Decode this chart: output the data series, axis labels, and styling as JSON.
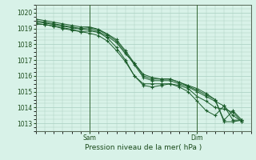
{
  "title": "",
  "xlabel": "Pression niveau de la mer( hPa )",
  "ylabel": "",
  "ylim": [
    1012.5,
    1020.5
  ],
  "xlim": [
    0,
    96
  ],
  "yticks": [
    1013,
    1014,
    1015,
    1016,
    1017,
    1018,
    1019,
    1020
  ],
  "xtick_positions": [
    24,
    72
  ],
  "xtick_labels": [
    "Sam",
    "Dim"
  ],
  "vlines": [
    24,
    72
  ],
  "bg_color": "#d8f2e8",
  "grid_color": "#a8cfc0",
  "line_color": "#1a5c2a",
  "marker_color": "#1a5c2a",
  "lines": [
    [
      0,
      1019.3,
      4,
      1019.25,
      8,
      1019.15,
      12,
      1019.05,
      16,
      1018.95,
      20,
      1018.8,
      24,
      1018.85,
      28,
      1018.75,
      32,
      1018.4,
      36,
      1017.8,
      40,
      1017.0,
      44,
      1016.0,
      48,
      1015.5,
      52,
      1015.5,
      56,
      1015.5,
      60,
      1015.5,
      64,
      1015.4,
      68,
      1015.2,
      72,
      1014.7,
      76,
      1014.4,
      80,
      1014.0,
      84,
      1013.9,
      88,
      1013.7,
      92,
      1013.1
    ],
    [
      0,
      1019.5,
      4,
      1019.4,
      8,
      1019.3,
      12,
      1019.2,
      16,
      1019.1,
      20,
      1019.0,
      24,
      1019.05,
      28,
      1018.9,
      32,
      1018.6,
      36,
      1018.2,
      40,
      1017.5,
      44,
      1016.7,
      48,
      1015.9,
      52,
      1015.7,
      56,
      1015.7,
      60,
      1015.7,
      64,
      1015.5,
      68,
      1015.3,
      72,
      1015.0,
      76,
      1014.7,
      80,
      1014.4,
      84,
      1014.1,
      88,
      1013.5,
      92,
      1013.1
    ],
    [
      0,
      1019.4,
      4,
      1019.35,
      8,
      1019.25,
      12,
      1019.15,
      16,
      1019.05,
      20,
      1018.95,
      24,
      1018.95,
      28,
      1018.8,
      32,
      1018.5,
      36,
      1018.1,
      40,
      1017.4,
      44,
      1016.8,
      48,
      1016.1,
      52,
      1015.9,
      56,
      1015.8,
      60,
      1015.8,
      64,
      1015.6,
      68,
      1015.35,
      72,
      1015.1,
      76,
      1014.8,
      80,
      1014.5,
      84,
      1013.1,
      88,
      1013.1,
      92,
      1013.2
    ],
    [
      0,
      1019.6,
      4,
      1019.5,
      8,
      1019.4,
      12,
      1019.3,
      16,
      1019.2,
      20,
      1019.1,
      24,
      1019.1,
      28,
      1018.95,
      32,
      1018.65,
      36,
      1018.3,
      40,
      1017.6,
      44,
      1016.8,
      48,
      1016.0,
      52,
      1015.8,
      56,
      1015.8,
      60,
      1015.8,
      64,
      1015.6,
      68,
      1015.4,
      72,
      1015.2,
      76,
      1014.9,
      80,
      1014.5,
      84,
      1013.2,
      88,
      1013.8,
      92,
      1013.2
    ],
    [
      0,
      1019.3,
      4,
      1019.25,
      8,
      1019.15,
      12,
      1019.0,
      16,
      1018.9,
      20,
      1018.8,
      24,
      1018.7,
      28,
      1018.55,
      32,
      1018.2,
      36,
      1017.6,
      40,
      1016.9,
      44,
      1016.0,
      48,
      1015.4,
      52,
      1015.3,
      56,
      1015.4,
      60,
      1015.5,
      64,
      1015.3,
      68,
      1015.0,
      72,
      1014.4,
      76,
      1013.8,
      80,
      1013.5,
      84,
      1014.1,
      88,
      1013.2,
      92,
      1013.2
    ]
  ]
}
